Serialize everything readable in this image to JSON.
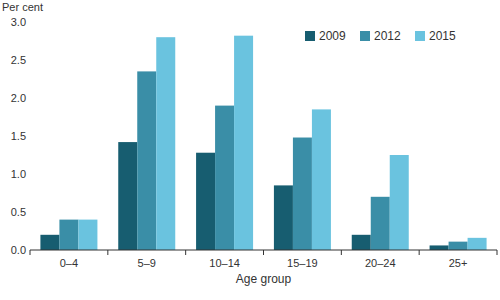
{
  "chart_data": {
    "type": "bar",
    "y_label": "Per cent",
    "x_label": "Age group",
    "categories": [
      "0–4",
      "5–9",
      "10–14",
      "15–19",
      "20–24",
      "25+"
    ],
    "series": [
      {
        "name": "2009",
        "color": "#175d70",
        "values": [
          0.2,
          1.42,
          1.28,
          0.85,
          0.2,
          0.06
        ]
      },
      {
        "name": "2012",
        "color": "#3a8ea7",
        "values": [
          0.4,
          2.35,
          1.9,
          1.48,
          0.7,
          0.11
        ]
      },
      {
        "name": "2015",
        "color": "#6ac3df",
        "values": [
          0.4,
          2.8,
          2.82,
          1.85,
          1.25,
          0.16
        ]
      }
    ],
    "ylim": [
      0,
      3
    ],
    "yticks": [
      {
        "value": 0,
        "label": "0.0"
      },
      0.5,
      {
        "value": 1,
        "label": "1.0"
      },
      1.5,
      {
        "value": 2,
        "label": "2.0"
      },
      2.5,
      {
        "value": 3,
        "label": "3.0"
      }
    ],
    "grid": false,
    "legend": "upper right"
  }
}
